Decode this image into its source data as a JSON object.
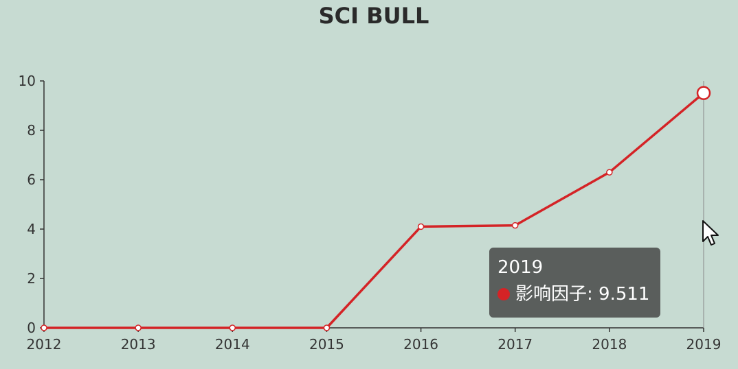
{
  "chart_data": {
    "type": "line",
    "title": "SCI BULL",
    "xlabel": "",
    "ylabel": "",
    "categories": [
      "2012",
      "2013",
      "2014",
      "2015",
      "2016",
      "2017",
      "2018",
      "2019"
    ],
    "series": [
      {
        "name": "影响因子",
        "values": [
          0,
          0,
          0,
          0,
          4.1,
          4.15,
          6.3,
          9.511
        ]
      }
    ],
    "ylim": [
      0,
      10
    ],
    "yticks": [
      0,
      2,
      4,
      6,
      8,
      10
    ],
    "grid": false,
    "legend": "none",
    "colors": {
      "line": "#d42326",
      "point_fill": "#ffffff",
      "axis": "#333333"
    }
  },
  "tooltip": {
    "title": "2019",
    "text": "影响因子: 9.511",
    "dot_color": "#d42326"
  },
  "cursor": {
    "icon": "mouse-pointer-icon"
  }
}
